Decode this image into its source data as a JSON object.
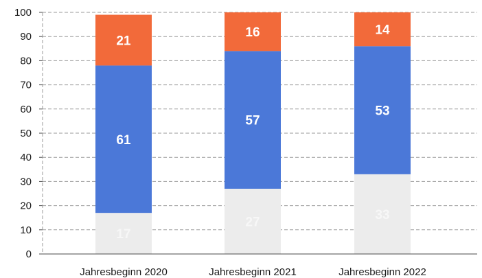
{
  "chart_data": {
    "type": "bar",
    "stacked": true,
    "categories": [
      "Jahresbeginn 2020",
      "Jahresbeginn 2021",
      "Jahresbeginn 2022"
    ],
    "series": [
      {
        "values": [
          17,
          27,
          33
        ],
        "color": "#ececec",
        "label_color": "#f7f7f7"
      },
      {
        "values": [
          61,
          57,
          53
        ],
        "color": "#4b78d8",
        "label_color": "#ffffff"
      },
      {
        "values": [
          21,
          16,
          14
        ],
        "color": "#f26a3a",
        "label_color": "#ffffff"
      }
    ],
    "data_labels": [
      [
        "17",
        "27",
        "33"
      ],
      [
        "61",
        "57",
        "53"
      ],
      [
        "21",
        "16",
        "14"
      ]
    ],
    "ylim": [
      0,
      100
    ],
    "yticks": [
      "0",
      "10",
      "20",
      "30",
      "40",
      "50",
      "60",
      "70",
      "80",
      "90",
      "100"
    ],
    "grid": true,
    "legend": "none",
    "title": "",
    "xlabel": "",
    "ylabel": ""
  }
}
